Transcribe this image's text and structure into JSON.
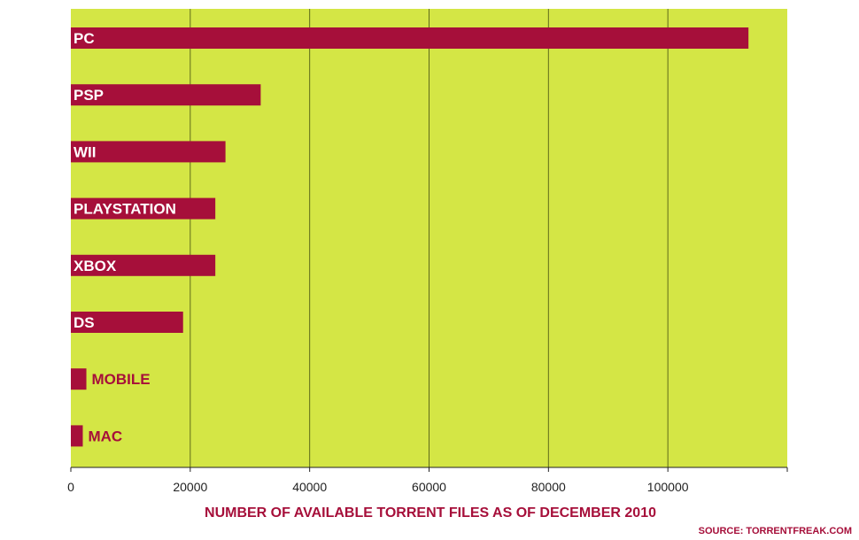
{
  "chart_data": {
    "type": "bar",
    "orientation": "horizontal",
    "categories": [
      "PC",
      "PSP",
      "WII",
      "PLAYSTATION",
      "XBOX",
      "DS",
      "MOBILE",
      "MAC"
    ],
    "values": [
      113500,
      31800,
      25900,
      24200,
      24200,
      18800,
      2600,
      2000
    ],
    "xlabel": "NUMBER OF AVAILABLE TORRENT FILES AS OF DECEMBER 2010",
    "xlim": [
      0,
      120000
    ],
    "xticks": [
      0,
      20000,
      40000,
      60000,
      80000,
      100000
    ],
    "xtick_labels": [
      "0",
      "20000",
      "40000",
      "60000",
      "80000",
      "100000"
    ],
    "grid": "vertical",
    "source": "SOURCE: TORRENTFREAK.COM"
  },
  "colors": {
    "plot_background": "#d4e645",
    "bar": "#a60f3a",
    "label_inside": "#ffffff",
    "label_outside": "#a60f3a",
    "gridline": "#5f6b1a"
  }
}
